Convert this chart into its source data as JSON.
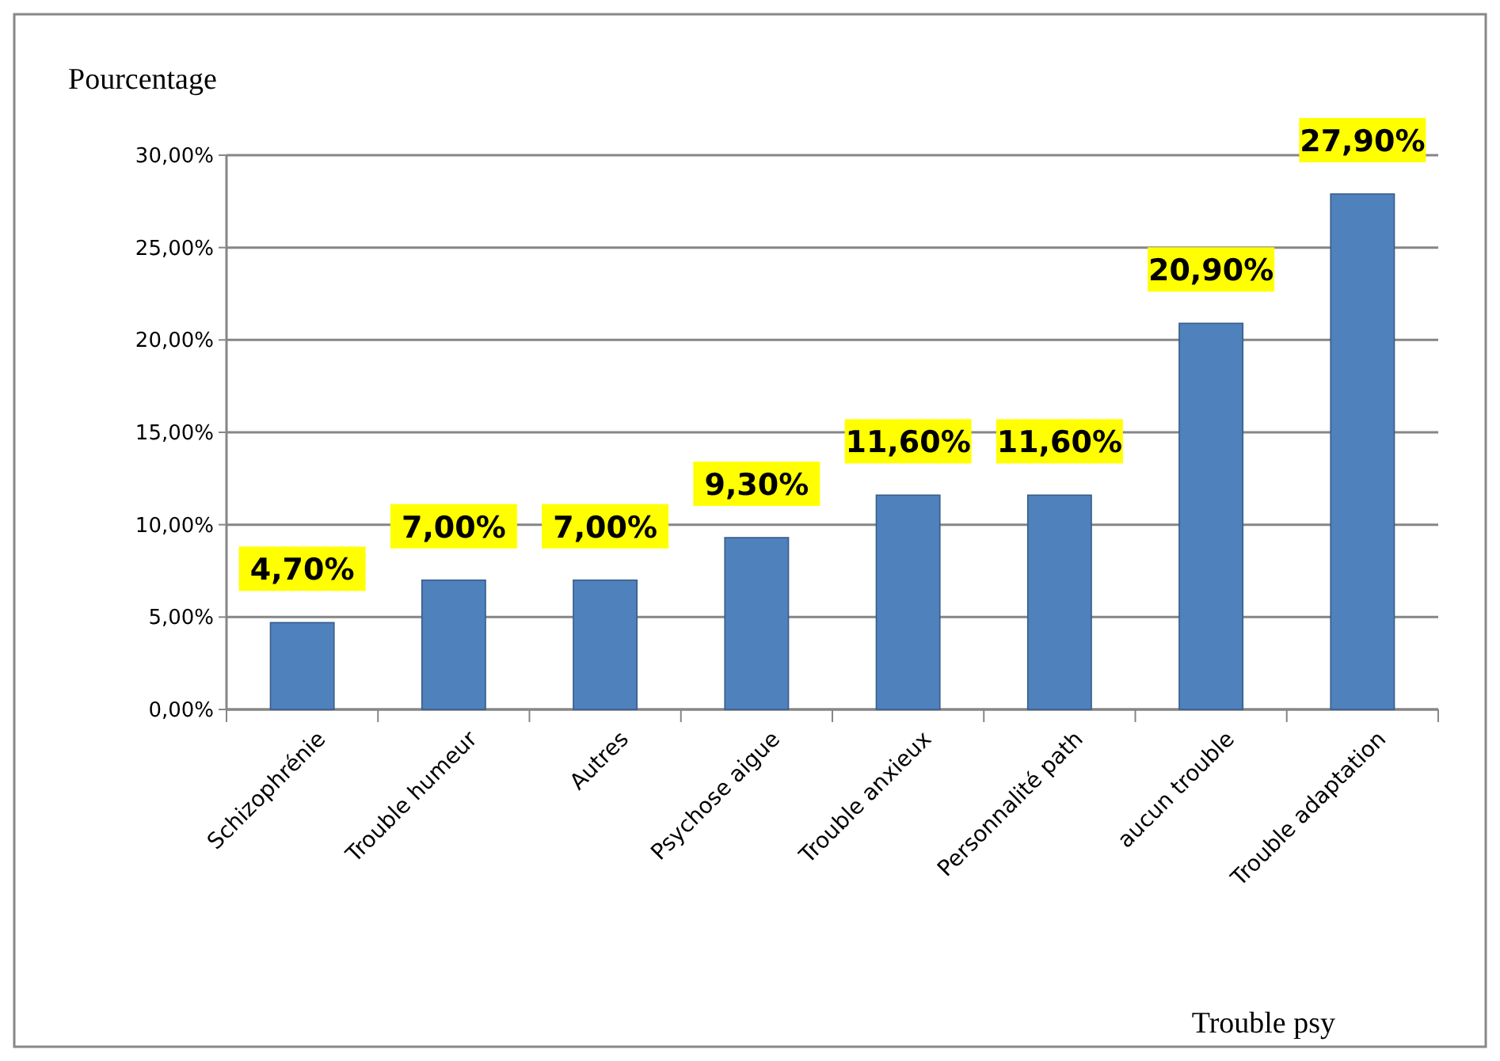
{
  "chart_data": {
    "type": "bar",
    "ylabel": "Pourcentage",
    "xlabel": "Trouble psy",
    "categories": [
      "Schizophrénie",
      "Trouble humeur",
      "Autres",
      "Psychose aigue",
      "Trouble anxieux",
      "Personnalité path",
      "aucun trouble",
      "Trouble adaptation"
    ],
    "values": [
      4.7,
      7.0,
      7.0,
      9.3,
      11.6,
      11.6,
      20.9,
      27.9
    ],
    "value_labels": [
      "4,70%",
      "7,00%",
      "7,00%",
      "9,30%",
      "11,60%",
      "11,60%",
      "20,90%",
      "27,90%"
    ],
    "color": "#4f81bd",
    "ylim": [
      0,
      30
    ],
    "yticks": [
      {
        "value": 0,
        "label": "0,00%"
      },
      {
        "value": 5,
        "label": "5,00%"
      },
      {
        "value": 10,
        "label": "10,00%"
      },
      {
        "value": 15,
        "label": "15,00%"
      },
      {
        "value": 20,
        "label": "20,00%"
      },
      {
        "value": 25,
        "label": "25,00%"
      },
      {
        "value": 30,
        "label": "30,00%"
      }
    ],
    "grid": "y"
  }
}
